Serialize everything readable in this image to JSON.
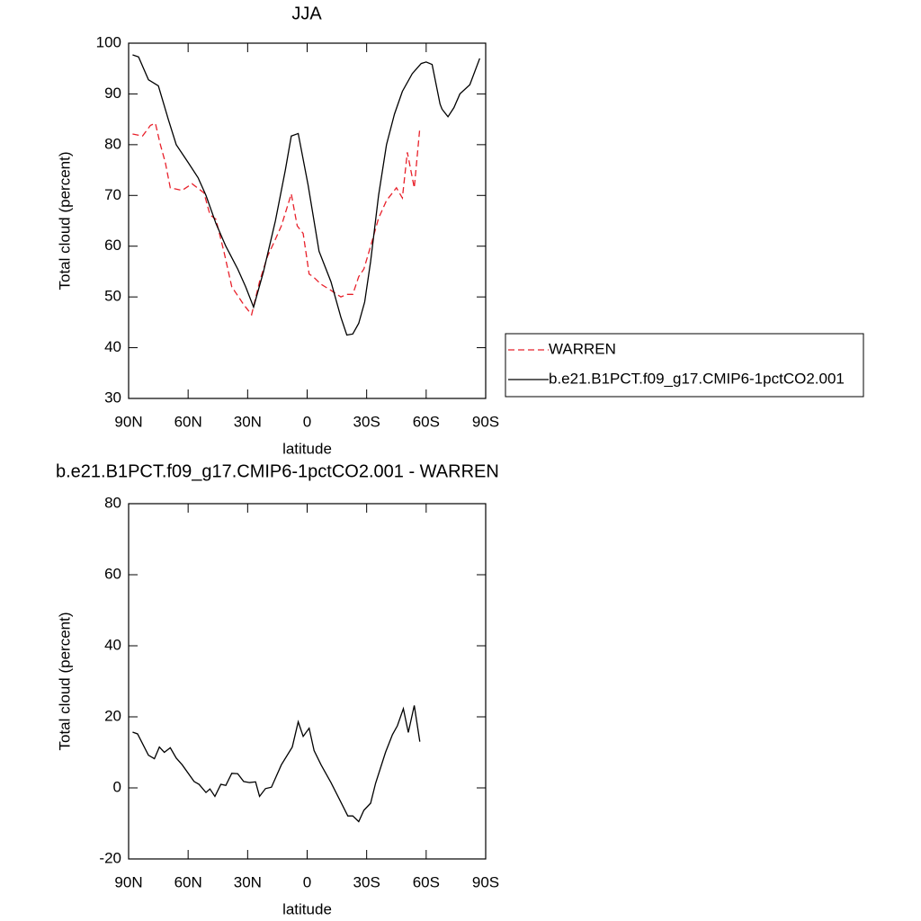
{
  "chart_data": [
    {
      "type": "line",
      "title": "JJA",
      "xlabel": "latitude",
      "ylabel": "Total cloud (percent)",
      "xlim": [
        90,
        -90
      ],
      "xticks": [
        {
          "value": 90,
          "label": "90N"
        },
        {
          "value": 60,
          "label": "60N"
        },
        {
          "value": 30,
          "label": "30N"
        },
        0,
        {
          "value": -30,
          "label": "30S"
        },
        {
          "value": -60,
          "label": "60S"
        },
        {
          "value": -90,
          "label": "90S"
        }
      ],
      "ylim": [
        30,
        100
      ],
      "yticks": [
        30,
        40,
        50,
        60,
        70,
        80,
        90,
        100
      ],
      "legend": "right",
      "series": [
        {
          "name": "WARREN",
          "color": "#e8202a",
          "line_style": "dashed",
          "x": [
            88,
            83,
            79,
            76.5,
            74,
            71.5,
            69,
            63,
            58,
            52,
            49,
            46,
            42,
            38,
            32,
            28,
            24,
            20,
            17,
            13,
            8,
            5,
            2,
            -1,
            -3,
            -7,
            -12,
            -17,
            -20,
            -23,
            -26,
            -28.6,
            -32,
            -36,
            -40,
            -45,
            -48,
            -50.5,
            -54,
            -56.8
          ],
          "values": [
            82.1,
            81.7,
            83.8,
            84.2,
            80,
            76.5,
            71.5,
            71,
            72.3,
            70.5,
            66.2,
            65.3,
            59,
            52,
            48.5,
            46.5,
            53,
            58,
            60.5,
            64,
            70.3,
            64,
            62.5,
            54.5,
            54,
            52.5,
            51.3,
            50,
            50.5,
            50.5,
            54,
            55.5,
            60,
            65.5,
            69,
            71.5,
            69.5,
            78.5,
            71.5,
            83.3
          ]
        },
        {
          "name": "b.e21.B1PCT.f09_g17.CMIP6-1pctCO2.001",
          "color": "#000000",
          "line_style": "solid",
          "x": [
            88,
            85,
            80,
            75,
            70,
            66,
            60,
            55,
            51,
            46,
            41,
            35,
            31,
            27,
            22,
            16,
            11,
            8,
            4.5,
            -0.5,
            -6,
            -12,
            -17,
            -20,
            -23,
            -26,
            -29,
            -32,
            -36,
            -40,
            -44,
            -48,
            -53,
            -57.5,
            -60,
            -63,
            -67,
            -68,
            -71,
            -74,
            -77,
            -82,
            -87
          ],
          "values": [
            97.7,
            97.3,
            92.8,
            91.6,
            85,
            80,
            76.5,
            73.5,
            70,
            64.5,
            60,
            55.5,
            52,
            48,
            55,
            65,
            75,
            81.7,
            82.2,
            72,
            59,
            53,
            46,
            42.5,
            42.7,
            44.8,
            49,
            57,
            70,
            80,
            86,
            90.5,
            94,
            96,
            96.3,
            95.8,
            88,
            87,
            85.5,
            87.3,
            90,
            91.8,
            97
          ]
        }
      ]
    },
    {
      "type": "line",
      "title": "b.e21.B1PCT.f09_g17.CMIP6-1pctCO2.001 - WARREN",
      "xlabel": "latitude",
      "ylabel": "Total cloud (percent)",
      "xlim": [
        90,
        -90
      ],
      "xticks": [
        {
          "value": 90,
          "label": "90N"
        },
        {
          "value": 60,
          "label": "60N"
        },
        {
          "value": 30,
          "label": "30N"
        },
        0,
        {
          "value": -30,
          "label": "30S"
        },
        {
          "value": -60,
          "label": "60S"
        },
        {
          "value": -90,
          "label": "90S"
        }
      ],
      "ylim": [
        -20,
        80
      ],
      "yticks": [
        -20,
        0,
        20,
        40,
        60,
        80
      ],
      "color": "#000000",
      "x": [
        88,
        85.5,
        80,
        77,
        74.5,
        72,
        69,
        66,
        63,
        57,
        54.5,
        51,
        49,
        46.5,
        43.5,
        41,
        38,
        35,
        32,
        29,
        26,
        24,
        21,
        18,
        13,
        7.5,
        4.5,
        2,
        -1,
        -3.5,
        -7,
        -12,
        -17,
        -20.5,
        -23,
        -26,
        -28.6,
        -32,
        -34.5,
        -39.5,
        -43,
        -45.5,
        -48.5,
        -51,
        -54,
        -56.8
      ],
      "values": [
        15.7,
        15.2,
        9.2,
        8.2,
        11.5,
        10,
        11.3,
        8.4,
        6.5,
        1.8,
        1,
        -1.3,
        -0.3,
        -2.4,
        1,
        0.7,
        4.1,
        4,
        1.8,
        1.5,
        1.7,
        -2.4,
        -0.2,
        0.2,
        6.5,
        11.5,
        18.6,
        14.5,
        16.8,
        10.5,
        6.5,
        1.5,
        -4,
        -7.9,
        -7.9,
        -9.5,
        -6.3,
        -4.3,
        1.3,
        10,
        15,
        17.5,
        22.3,
        15.6,
        23.2,
        13
      ]
    }
  ]
}
